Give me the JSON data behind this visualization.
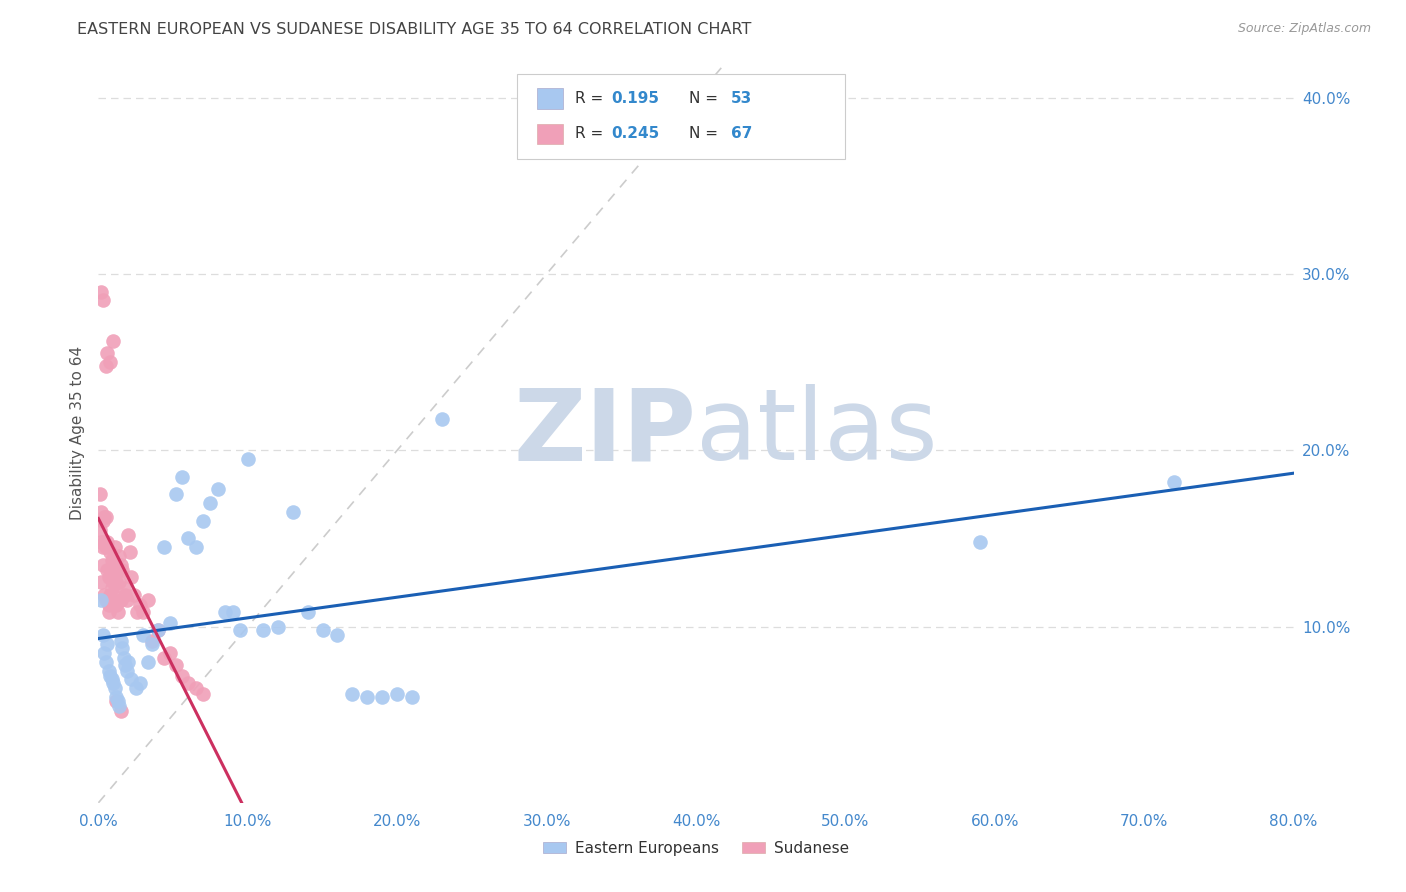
{
  "title": "EASTERN EUROPEAN VS SUDANESE DISABILITY AGE 35 TO 64 CORRELATION CHART",
  "source": "Source: ZipAtlas.com",
  "ylabel": "Disability Age 35 to 64",
  "xlim": [
    0.0,
    0.8
  ],
  "ylim": [
    0.0,
    0.42
  ],
  "xticks": [
    0.0,
    0.1,
    0.2,
    0.3,
    0.4,
    0.5,
    0.6,
    0.7,
    0.8
  ],
  "xticklabels": [
    "0.0%",
    "10.0%",
    "20.0%",
    "30.0%",
    "40.0%",
    "50.0%",
    "60.0%",
    "70.0%",
    "80.0%"
  ],
  "yticks": [
    0.1,
    0.2,
    0.3,
    0.4
  ],
  "yticklabels": [
    "10.0%",
    "20.0%",
    "30.0%",
    "40.0%"
  ],
  "grid_color": "#dddddd",
  "background_color": "#ffffff",
  "watermark_zip": "ZIP",
  "watermark_atlas": "atlas",
  "watermark_color": "#ccd8e8",
  "blue_color": "#a8c8f0",
  "pink_color": "#f0a0b8",
  "blue_line_color": "#1a5fb4",
  "pink_line_color": "#cc3060",
  "axis_tick_color": "#4488cc",
  "title_color": "#444444",
  "legend_num_color": "#3388cc",
  "ee_x": [
    0.002,
    0.003,
    0.004,
    0.005,
    0.006,
    0.007,
    0.008,
    0.009,
    0.01,
    0.011,
    0.012,
    0.013,
    0.014,
    0.015,
    0.016,
    0.017,
    0.018,
    0.019,
    0.02,
    0.022,
    0.025,
    0.028,
    0.03,
    0.033,
    0.036,
    0.04,
    0.044,
    0.048,
    0.052,
    0.056,
    0.06,
    0.065,
    0.07,
    0.075,
    0.08,
    0.085,
    0.09,
    0.095,
    0.1,
    0.11,
    0.12,
    0.13,
    0.14,
    0.15,
    0.16,
    0.17,
    0.18,
    0.19,
    0.2,
    0.21,
    0.23,
    0.59,
    0.72
  ],
  "ee_y": [
    0.115,
    0.095,
    0.085,
    0.08,
    0.09,
    0.075,
    0.072,
    0.07,
    0.068,
    0.065,
    0.06,
    0.058,
    0.055,
    0.092,
    0.088,
    0.082,
    0.078,
    0.075,
    0.08,
    0.07,
    0.065,
    0.068,
    0.095,
    0.08,
    0.09,
    0.098,
    0.145,
    0.102,
    0.175,
    0.185,
    0.15,
    0.145,
    0.16,
    0.17,
    0.178,
    0.108,
    0.108,
    0.098,
    0.195,
    0.098,
    0.1,
    0.165,
    0.108,
    0.098,
    0.095,
    0.062,
    0.06,
    0.06,
    0.062,
    0.06,
    0.218,
    0.148,
    0.182
  ],
  "su_x": [
    0.001,
    0.001,
    0.002,
    0.002,
    0.002,
    0.003,
    0.003,
    0.003,
    0.004,
    0.004,
    0.004,
    0.005,
    0.005,
    0.005,
    0.006,
    0.006,
    0.006,
    0.007,
    0.007,
    0.007,
    0.008,
    0.008,
    0.008,
    0.009,
    0.009,
    0.01,
    0.01,
    0.01,
    0.011,
    0.011,
    0.012,
    0.012,
    0.013,
    0.013,
    0.014,
    0.014,
    0.015,
    0.015,
    0.016,
    0.017,
    0.018,
    0.019,
    0.02,
    0.021,
    0.022,
    0.024,
    0.026,
    0.028,
    0.03,
    0.033,
    0.036,
    0.04,
    0.044,
    0.048,
    0.052,
    0.056,
    0.06,
    0.065,
    0.07,
    0.002,
    0.003,
    0.005,
    0.006,
    0.008,
    0.01,
    0.012,
    0.015
  ],
  "su_y": [
    0.155,
    0.175,
    0.125,
    0.148,
    0.165,
    0.135,
    0.16,
    0.145,
    0.118,
    0.148,
    0.162,
    0.115,
    0.145,
    0.162,
    0.115,
    0.132,
    0.148,
    0.112,
    0.108,
    0.128,
    0.118,
    0.128,
    0.142,
    0.122,
    0.138,
    0.118,
    0.125,
    0.138,
    0.132,
    0.145,
    0.112,
    0.125,
    0.108,
    0.132,
    0.125,
    0.14,
    0.135,
    0.115,
    0.132,
    0.122,
    0.118,
    0.115,
    0.152,
    0.142,
    0.128,
    0.118,
    0.108,
    0.112,
    0.108,
    0.115,
    0.092,
    0.098,
    0.082,
    0.085,
    0.078,
    0.072,
    0.068,
    0.065,
    0.062,
    0.29,
    0.285,
    0.248,
    0.255,
    0.25,
    0.262,
    0.058,
    0.052
  ]
}
